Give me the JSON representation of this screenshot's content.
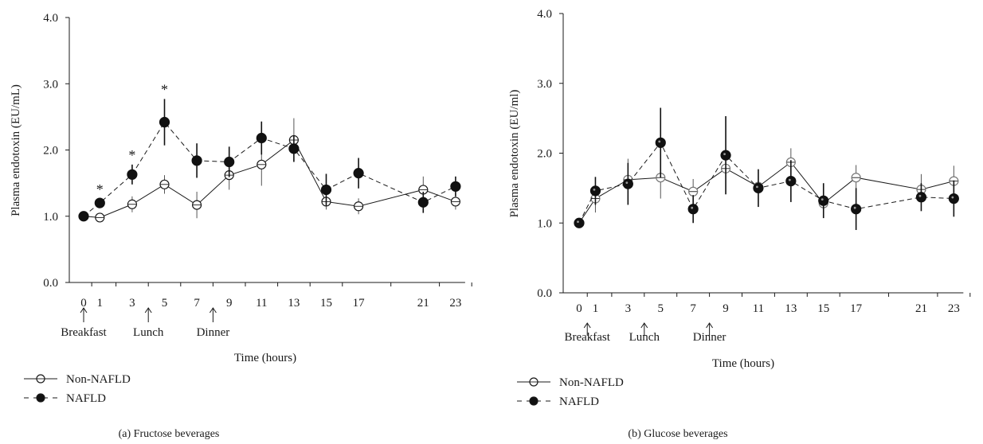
{
  "chart_data": [
    {
      "id": "a",
      "type": "line",
      "caption": "(a)  Fructose beverages",
      "xlabel": "Time (hours)",
      "ylabel": "Plasma endotoxin (EU/mL)",
      "ylim": [
        0,
        4
      ],
      "yticks": [
        "0.0",
        "1.0",
        "2.0",
        "3.0",
        "4.0"
      ],
      "x_ticks": [
        0,
        1,
        3,
        5,
        7,
        9,
        11,
        13,
        15,
        17,
        21,
        23
      ],
      "meal_markers": [
        {
          "label": "Breakfast",
          "x": 0
        },
        {
          "label": "Lunch",
          "x": 4
        },
        {
          "label": "Dinner",
          "x": 8
        }
      ],
      "significance_marker": "*",
      "significant_x": [
        1,
        3,
        5
      ],
      "series": [
        {
          "name": "Non-NAFLD",
          "marker": "open-circle",
          "line": "solid",
          "x": [
            0,
            1,
            3,
            5,
            7,
            9,
            11,
            13,
            15,
            17,
            21,
            23
          ],
          "y": [
            1.0,
            0.98,
            1.18,
            1.48,
            1.17,
            1.62,
            1.78,
            2.15,
            1.22,
            1.15,
            1.4,
            1.22
          ],
          "err": [
            0.0,
            0.05,
            0.12,
            0.14,
            0.2,
            0.22,
            0.32,
            0.33,
            0.12,
            0.12,
            0.2,
            0.12
          ]
        },
        {
          "name": "NAFLD",
          "marker": "filled-circle",
          "line": "dashed",
          "x": [
            0,
            1,
            3,
            5,
            7,
            9,
            11,
            13,
            15,
            17,
            21,
            23
          ],
          "y": [
            1.0,
            1.2,
            1.63,
            2.42,
            1.84,
            1.82,
            2.18,
            2.02,
            1.4,
            1.65,
            1.21,
            1.45
          ],
          "err": [
            0.0,
            0.06,
            0.15,
            0.35,
            0.26,
            0.23,
            0.25,
            0.2,
            0.24,
            0.23,
            0.16,
            0.15
          ]
        }
      ]
    },
    {
      "id": "b",
      "type": "line",
      "caption": "(b)  Glucose beverages",
      "xlabel": "Time (hours)",
      "ylabel": "Plasma endotoxin (EU/ml)",
      "ylim": [
        0,
        4
      ],
      "yticks": [
        "0.0",
        "1.0",
        "2.0",
        "3.0",
        "4.0"
      ],
      "x_ticks": [
        0,
        1,
        3,
        5,
        7,
        9,
        11,
        13,
        15,
        17,
        21,
        23
      ],
      "meal_markers": [
        {
          "label": "Breakfast",
          "x": 0.5
        },
        {
          "label": "Lunch",
          "x": 4
        },
        {
          "label": "Dinner",
          "x": 8
        }
      ],
      "significance_marker": "",
      "significant_x": [],
      "series": [
        {
          "name": "Non-NAFLD",
          "marker": "open-circle",
          "line": "solid",
          "x": [
            0,
            1,
            3,
            5,
            7,
            9,
            11,
            13,
            15,
            17,
            21,
            23
          ],
          "y": [
            1.0,
            1.35,
            1.62,
            1.65,
            1.45,
            1.78,
            1.52,
            1.87,
            1.28,
            1.65,
            1.48,
            1.6
          ],
          "err": [
            0.0,
            0.2,
            0.3,
            0.3,
            0.18,
            0.3,
            0.22,
            0.2,
            0.18,
            0.18,
            0.22,
            0.22
          ]
        },
        {
          "name": "NAFLD",
          "marker": "filled-circle",
          "line": "dashed",
          "x": [
            0,
            1,
            3,
            5,
            7,
            9,
            11,
            13,
            15,
            17,
            21,
            23
          ],
          "y": [
            1.0,
            1.46,
            1.56,
            2.15,
            1.2,
            1.97,
            1.5,
            1.6,
            1.32,
            1.2,
            1.37,
            1.35
          ],
          "err": [
            0.0,
            0.2,
            0.3,
            0.5,
            0.2,
            0.56,
            0.27,
            0.3,
            0.25,
            0.3,
            0.2,
            0.26
          ]
        }
      ]
    }
  ]
}
